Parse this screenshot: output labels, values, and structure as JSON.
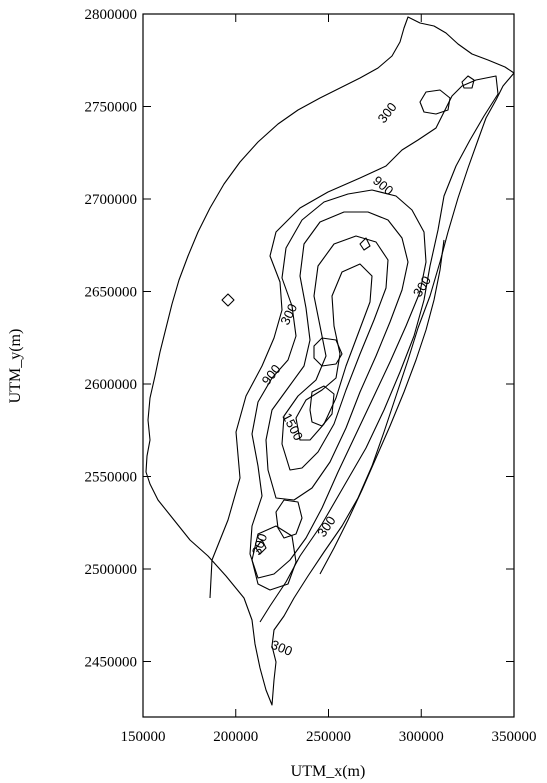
{
  "map": {
    "x_axis_title": "UTM_x(m)",
    "y_axis_title": "UTM_y(m)",
    "x_ticks": [
      "150000",
      "200000",
      "250000",
      "300000",
      "350000"
    ],
    "y_ticks": [
      "2800000",
      "2750000",
      "2700000",
      "2650000",
      "2600000",
      "2550000",
      "2500000",
      "2450000"
    ],
    "x_range": [
      150000,
      350000
    ],
    "y_range": [
      2420000,
      2800000
    ],
    "contour_labels": [
      "300",
      "900",
      "300",
      "300",
      "900",
      "1500",
      "300",
      "300",
      "300"
    ],
    "colors": {
      "line": "#000000",
      "background": "#ffffff"
    }
  }
}
